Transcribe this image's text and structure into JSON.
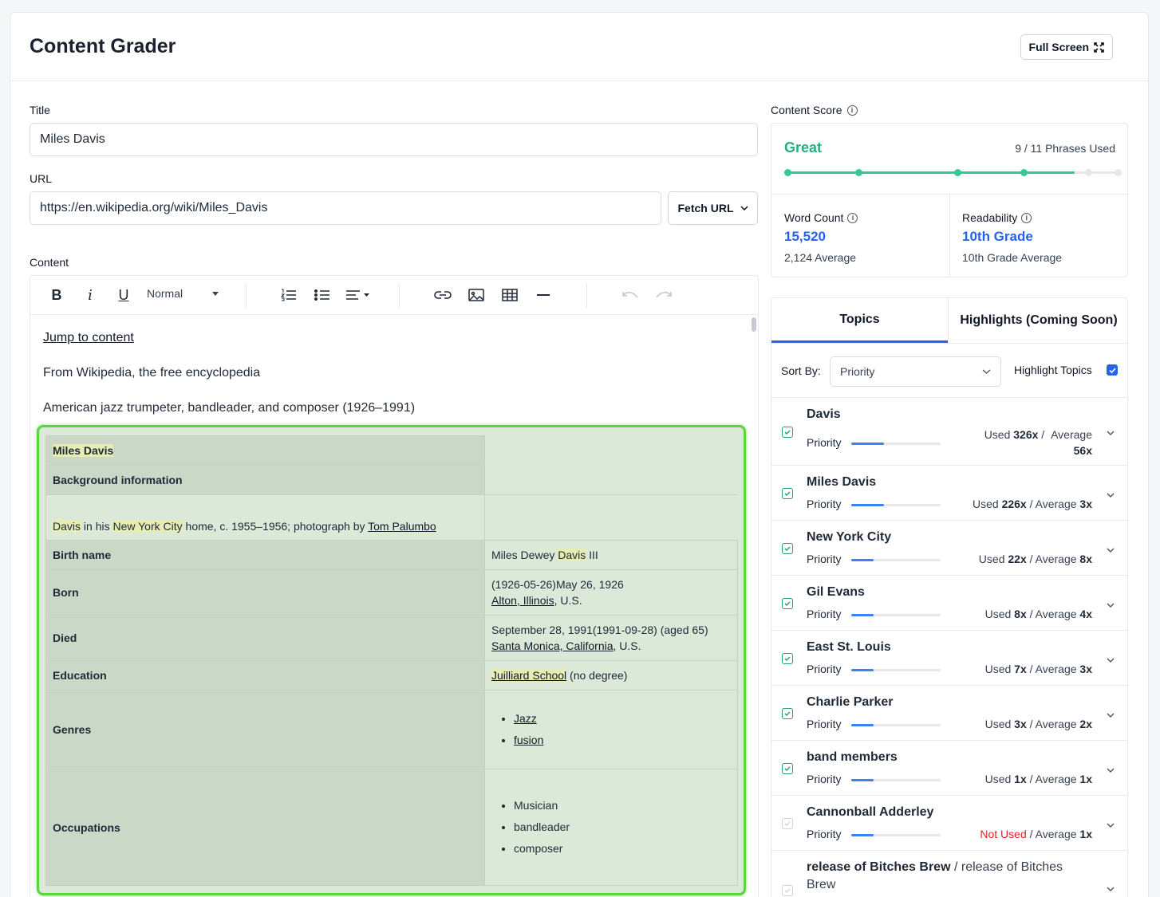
{
  "header": {
    "title": "Content Grader",
    "fullscreen_label": "Full Screen"
  },
  "form": {
    "title_label": "Title",
    "title_value": "Miles Davis",
    "url_label": "URL",
    "url_value": "https://en.wikipedia.org/wiki/Miles_Davis",
    "fetch_label": "Fetch URL",
    "content_label": "Content"
  },
  "toolbar": {
    "bold": "B",
    "italic": "i",
    "underline": "U",
    "style_select": "Normal"
  },
  "content": {
    "jump": "Jump to content",
    "from": "From Wikipedia, the free encyclopedia",
    "desc": "American jazz trumpeter, bandleader, and composer (1926–1991)",
    "infobox": {
      "name": "Miles Davis",
      "bg": "Background information",
      "caption_davis": "Davis",
      "caption_in": " in his ",
      "caption_nyc": "New York City",
      "caption_mid": " home, c. 1955–1956; photograph by ",
      "caption_photog": "Tom Palumbo",
      "birth_name_label": "Birth name",
      "birth_name_pre": "Miles Dewey ",
      "birth_name_hl": "Davis",
      "birth_name_post": " III",
      "born_label": "Born",
      "born_line1": "(1926-05-26)May 26, 1926",
      "born_place": "Alton, Illinois",
      "born_suffix": ", U.S.",
      "died_label": "Died",
      "died_line1": "September 28, 1991(1991-09-28) (aged 65)",
      "died_place": "Santa Monica, California",
      "died_suffix": ", U.S.",
      "education_label": "Education",
      "education_school": "Juilliard School",
      "education_note": " (no degree)",
      "genres_label": "Genres",
      "genres": [
        "Jazz",
        "fusion"
      ],
      "occupations_label": "Occupations",
      "occupations": [
        "Musician",
        "bandleader",
        "composer"
      ]
    }
  },
  "score": {
    "label": "Content Score",
    "grade": "Great",
    "phrases": "9 / 11 Phrases Used",
    "progress_fraction": 0.87,
    "grade_color": "#22b07d",
    "word_count_label": "Word Count",
    "word_count": "15,520",
    "word_count_avg": "2,124 Average",
    "readability_label": "Readability",
    "readability": "10th Grade",
    "readability_avg": "10th Grade Average"
  },
  "topics": {
    "tabs": [
      "Topics",
      "Highlights (Coming Soon)"
    ],
    "sort_label": "Sort By:",
    "sort_value": "Priority",
    "highlight_label": "Highlight Topics",
    "items": [
      {
        "name": "Davis",
        "priority": "Priority",
        "priority_level": 0.37,
        "used_pre": "Used ",
        "used": "326x",
        "sep": " / ",
        "avg_pre": "Average",
        "avg": "56x",
        "checked": true
      },
      {
        "name": "Miles Davis",
        "priority": "Priority",
        "priority_level": 0.37,
        "used_pre": "Used ",
        "used": "226x",
        "sep": " / ",
        "avg_pre": "Average ",
        "avg": "3x",
        "checked": true
      },
      {
        "name": "New York City",
        "priority": "Priority",
        "priority_level": 0.25,
        "used_pre": "Used ",
        "used": "22x",
        "sep": " / ",
        "avg_pre": "Average ",
        "avg": "8x",
        "checked": true
      },
      {
        "name": "Gil Evans",
        "priority": "Priority",
        "priority_level": 0.25,
        "used_pre": "Used ",
        "used": "8x",
        "sep": " / ",
        "avg_pre": "Average ",
        "avg": "4x",
        "checked": true
      },
      {
        "name": "East St. Louis",
        "priority": "Priority",
        "priority_level": 0.25,
        "used_pre": "Used ",
        "used": "7x",
        "sep": " / ",
        "avg_pre": "Average ",
        "avg": "3x",
        "checked": true
      },
      {
        "name": "Charlie Parker",
        "priority": "Priority",
        "priority_level": 0.25,
        "used_pre": "Used ",
        "used": "3x",
        "sep": " / ",
        "avg_pre": "Average ",
        "avg": "2x",
        "checked": true
      },
      {
        "name": "band members",
        "priority": "Priority",
        "priority_level": 0.25,
        "used_pre": "Used ",
        "used": "1x",
        "sep": " / ",
        "avg_pre": "Average ",
        "avg": "1x",
        "checked": true
      },
      {
        "name": "Cannonball Adderley",
        "priority": "Priority",
        "priority_level": 0.25,
        "not_used": "Not Used",
        "sep": " / ",
        "avg_pre": "Average ",
        "avg": "1x",
        "checked": false
      },
      {
        "name": "release of Bitches Brew",
        "alt": " / release of Bitches",
        "alt2": "Brew",
        "checked": false
      }
    ]
  }
}
